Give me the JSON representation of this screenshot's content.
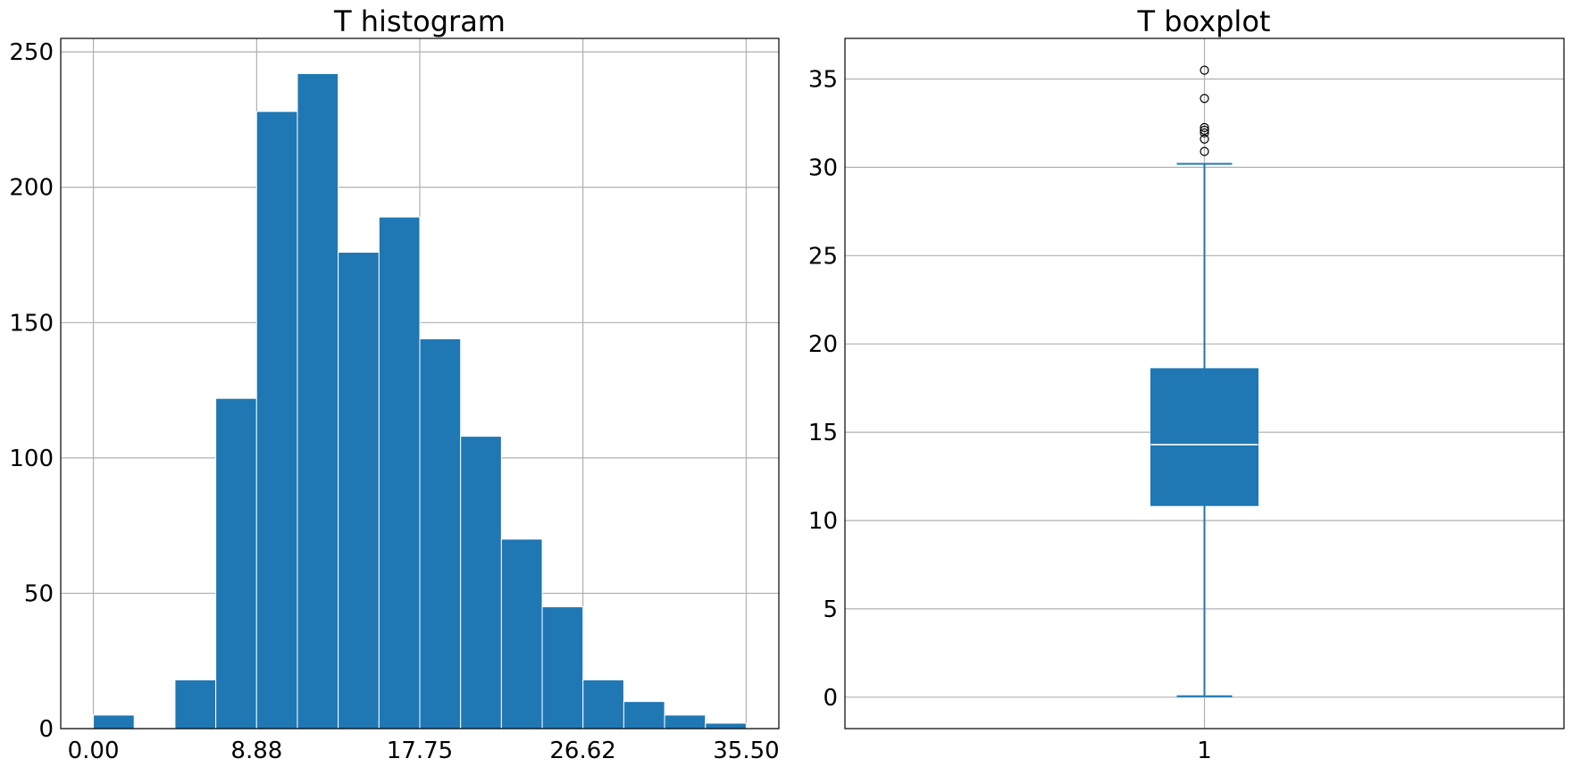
{
  "chart_data": [
    {
      "type": "bar",
      "title": "T histogram",
      "xlabel": "",
      "ylabel": "",
      "color": "#1f77b4",
      "xlim": [
        -1.775,
        37.275
      ],
      "ylim": [
        0,
        255
      ],
      "xticks": [
        "0.00",
        "8.88",
        "17.75",
        "26.62",
        "35.50"
      ],
      "yticks": [
        "0",
        "50",
        "100",
        "150",
        "200",
        "250"
      ],
      "grid": true,
      "bin_edges": [
        0,
        2.21875,
        4.4375,
        6.65625,
        8.875,
        11.09375,
        13.3125,
        15.53125,
        17.75,
        19.96875,
        22.1875,
        24.40625,
        26.625,
        28.84375,
        31.0625,
        33.28125,
        35.5
      ],
      "values": [
        5,
        0,
        18,
        122,
        228,
        242,
        176,
        189,
        144,
        108,
        70,
        45,
        18,
        10,
        5,
        2
      ]
    },
    {
      "type": "box",
      "title": "T boxplot",
      "xlabel": "",
      "ylabel": "",
      "color": "#1f77b4",
      "categories": [
        "1"
      ],
      "yticks": [
        "0",
        "5",
        "10",
        "15",
        "20",
        "25",
        "30",
        "35"
      ],
      "ylim": [
        -1.78,
        37.3
      ],
      "grid": true,
      "stats": {
        "whisker_low": 0.05,
        "q1": 10.85,
        "median": 14.3,
        "q3": 18.6,
        "whisker_high": 30.2
      },
      "outliers": [
        30.9,
        31.6,
        31.95,
        32.1,
        32.25,
        33.9,
        35.5
      ]
    }
  ]
}
